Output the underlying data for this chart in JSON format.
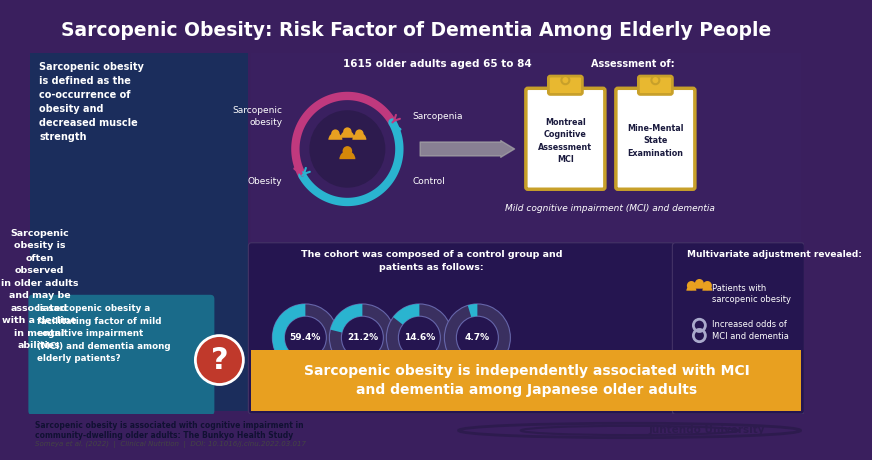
{
  "title": "Sarcopenic Obesity: Risk Factor of Dementia Among Elderly People",
  "title_bg": "#1a3a5c",
  "title_color": "#ffffff",
  "bg_color": "#3a1f5e",
  "left_panel_bg": "#1e3060",
  "right_panel_bg": "#2d1b4e",
  "bottom_section_bg": "#2a1850",
  "bottom_bar_bg": "#e8a020",
  "footer_bg": "#f5f5f5",
  "definition_text": "Sarcopenic obesity\nis defined as the\nco-occurrence of\nobesity and\ndecreased muscle\nstrength",
  "observation_text": "Sarcopenic obesity is often observed\nin older adults and may be associated\nwith a decline in mental abilities",
  "question_text": "Is sarcopenic obesity a\nfacilitating factor of mild\ncognitive impairment\n(MCI) and dementia among\nelderly patients?",
  "study_label": "1615 older adults aged 65 to 84",
  "assessment_label": "Assessment of:",
  "assessment1": "Montreal\nCognitive\nAssessment\nMCI",
  "assessment2": "Mine-Mental\nState\nExamination",
  "mild_label": "Mild cognitive impairment (MCI) and dementia",
  "cohort_title": "The cohort was composed of a control group and\npatients as follows:",
  "percentages": [
    "59.4%",
    "21.2%",
    "14.6%",
    "4.7%"
  ],
  "pct_labels": [
    "Control",
    "Obesity",
    "Sarcopenia",
    "Sarcopenic\nobesity"
  ],
  "pct_values": [
    59.4,
    21.2,
    14.6,
    4.7
  ],
  "multivariate_title": "Multivariate adjustment revealed:",
  "multivariate1": "Patients with\nsarcopenic obesity",
  "multivariate2": "Increased odds of\nMCI and dementia",
  "conclusion_text": "Sarcopenic obesity is independently associated with MCI\nand dementia among Japanese older adults",
  "footer_text1": "Sarcopenic obesity is associated with cognitive impairment in\ncommunity-dwelling older adults: The Bunkyo Health Study",
  "footer_text2": "Someya et al. (2022)  |  Clinical Nutrition  |  DOI: 10.1016/j.clnu.2022.03.017",
  "university": "Juntendo University",
  "arc_color_pink": "#c0397e",
  "arc_color_cyan": "#2ab4d0",
  "donut_fill_color": "#2ab4d0",
  "donut_bg_color": "#555577",
  "clipboard_bg": "#ffffff",
  "clipboard_border": "#c8a02a",
  "clipboard_tab": "#e8b830",
  "question_box_bg": "#1a6b8a",
  "question_mark_bg": "#c0392b"
}
